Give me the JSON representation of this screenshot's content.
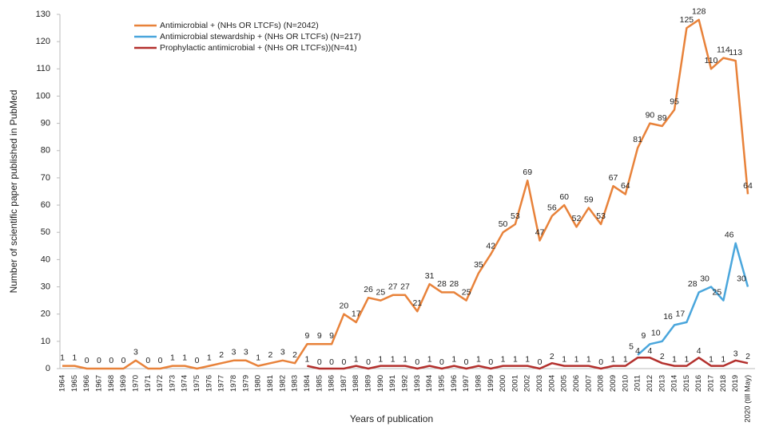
{
  "chart_data": {
    "type": "line",
    "y_label": "Number of scientific paper published in PubMed",
    "x_label": "Years of publication",
    "categories": [
      "1964",
      "1965",
      "1966",
      "1967",
      "1968",
      "1969",
      "1970",
      "1971",
      "1972",
      "1973",
      "1974",
      "1975",
      "1976",
      "1977",
      "1978",
      "1979",
      "1980",
      "1981",
      "1982",
      "1983",
      "1984",
      "1985",
      "1986",
      "1987",
      "1988",
      "1989",
      "1990",
      "1991",
      "1992",
      "1993",
      "1994",
      "1995",
      "1996",
      "1997",
      "1998",
      "1999",
      "2000",
      "2001",
      "2002",
      "2003",
      "2004",
      "2005",
      "2006",
      "2007",
      "2008",
      "2009",
      "2010",
      "2011",
      "2012",
      "2013",
      "2014",
      "2015",
      "2016",
      "2017",
      "2018",
      "2019",
      "2020 (till May)"
    ],
    "series": [
      {
        "name": "Antimicrobial + (NHs OR LTCFs) (N=2042)",
        "color": "#e8823a",
        "values": [
          1,
          1,
          0,
          0,
          0,
          0,
          3,
          0,
          0,
          1,
          1,
          0,
          1,
          2,
          3,
          3,
          1,
          2,
          3,
          2,
          9,
          9,
          9,
          20,
          17,
          26,
          25,
          27,
          27,
          21,
          31,
          28,
          28,
          25,
          35,
          42,
          50,
          53,
          69,
          47,
          56,
          60,
          52,
          59,
          53,
          67,
          64,
          81,
          90,
          89,
          95,
          125,
          128,
          110,
          114,
          113,
          64
        ]
      },
      {
        "name": "Antimicrobial stewardship + (NHs OR LTCFs) (N=217)",
        "color": "#4aa6dc",
        "values": [
          null,
          null,
          null,
          null,
          null,
          null,
          null,
          null,
          null,
          null,
          null,
          null,
          null,
          null,
          null,
          null,
          null,
          null,
          null,
          null,
          null,
          null,
          null,
          null,
          null,
          null,
          null,
          null,
          null,
          null,
          null,
          null,
          null,
          null,
          null,
          null,
          null,
          null,
          null,
          null,
          null,
          null,
          null,
          null,
          null,
          null,
          null,
          5,
          9,
          10,
          16,
          17,
          28,
          30,
          25,
          46,
          30
        ]
      },
      {
        "name": "Prophylactic antimicrobial + (NHs OR LTCFs))(N=41)",
        "color": "#b3302d",
        "values": [
          null,
          null,
          null,
          null,
          null,
          null,
          null,
          null,
          null,
          null,
          null,
          null,
          null,
          null,
          null,
          null,
          null,
          null,
          null,
          null,
          1,
          0,
          0,
          0,
          1,
          0,
          1,
          1,
          1,
          0,
          1,
          0,
          1,
          0,
          1,
          0,
          1,
          1,
          1,
          0,
          2,
          1,
          1,
          1,
          0,
          1,
          1,
          4,
          4,
          2,
          1,
          1,
          4,
          1,
          1,
          3,
          2
        ]
      }
    ],
    "ylim": [
      0,
      130
    ],
    "yticks": [
      0,
      10,
      20,
      30,
      40,
      50,
      60,
      70,
      80,
      90,
      100,
      110,
      120,
      130
    ]
  }
}
